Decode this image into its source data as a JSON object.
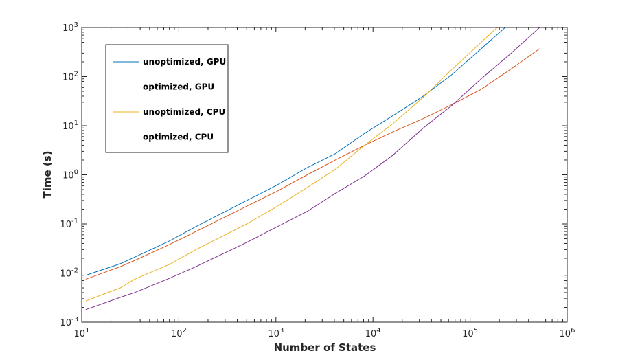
{
  "chart_data": {
    "type": "line",
    "title": "",
    "xlabel": "Number of States",
    "ylabel": "Time (s)",
    "xscale": "log",
    "yscale": "log",
    "xlim": [
      10,
      1000000
    ],
    "ylim": [
      0.001,
      1000
    ],
    "x_ticks": [
      {
        "value": 10,
        "base": "10",
        "exp": "1"
      },
      {
        "value": 100,
        "base": "10",
        "exp": "2"
      },
      {
        "value": 1000,
        "base": "10",
        "exp": "3"
      },
      {
        "value": 10000,
        "base": "10",
        "exp": "4"
      },
      {
        "value": 100000,
        "base": "10",
        "exp": "5"
      },
      {
        "value": 1000000,
        "base": "10",
        "exp": "6"
      }
    ],
    "y_ticks": [
      {
        "value": 0.001,
        "base": "10",
        "exp": "-3"
      },
      {
        "value": 0.01,
        "base": "10",
        "exp": "-2"
      },
      {
        "value": 0.1,
        "base": "10",
        "exp": "-1"
      },
      {
        "value": 1,
        "base": "10",
        "exp": "0"
      },
      {
        "value": 10,
        "base": "10",
        "exp": "1"
      },
      {
        "value": 100,
        "base": "10",
        "exp": "2"
      },
      {
        "value": 1000,
        "base": "10",
        "exp": "3"
      }
    ],
    "grid": false,
    "legend_position": "top-left",
    "series": [
      {
        "name": "unoptimized, GPU",
        "color": "#0072BD",
        "points": [
          [
            11,
            0.009
          ],
          [
            25,
            0.0155
          ],
          [
            35,
            0.021
          ],
          [
            80,
            0.045
          ],
          [
            150,
            0.088
          ],
          [
            500,
            0.3
          ],
          [
            1000,
            0.6
          ],
          [
            2100,
            1.4
          ],
          [
            4100,
            2.7
          ],
          [
            8200,
            7.0
          ],
          [
            16000,
            16
          ],
          [
            33000,
            40
          ],
          [
            65000,
            110
          ],
          [
            130000,
            370
          ],
          [
            230000,
            1000
          ]
        ]
      },
      {
        "name": "optimized, GPU",
        "color": "#D95319",
        "points": [
          [
            11,
            0.0075
          ],
          [
            25,
            0.0135
          ],
          [
            35,
            0.018
          ],
          [
            80,
            0.038
          ],
          [
            150,
            0.07
          ],
          [
            500,
            0.23
          ],
          [
            1000,
            0.45
          ],
          [
            2100,
            1.0
          ],
          [
            4100,
            2.0
          ],
          [
            8200,
            4.0
          ],
          [
            16000,
            7.5
          ],
          [
            33000,
            14
          ],
          [
            65000,
            27
          ],
          [
            130000,
            55
          ],
          [
            260000,
            140
          ],
          [
            520000,
            370
          ]
        ]
      },
      {
        "name": "unoptimized, CPU",
        "color": "#EDB120",
        "points": [
          [
            11,
            0.0027
          ],
          [
            25,
            0.005
          ],
          [
            35,
            0.0075
          ],
          [
            80,
            0.015
          ],
          [
            150,
            0.03
          ],
          [
            500,
            0.1
          ],
          [
            1000,
            0.22
          ],
          [
            2100,
            0.55
          ],
          [
            4100,
            1.3
          ],
          [
            8200,
            4.0
          ],
          [
            16000,
            11
          ],
          [
            33000,
            38
          ],
          [
            65000,
            140
          ],
          [
            130000,
            500
          ],
          [
            190000,
            1000
          ]
        ]
      },
      {
        "name": "optimized, CPU",
        "color": "#7E2F8E",
        "points": [
          [
            11,
            0.0018
          ],
          [
            25,
            0.0032
          ],
          [
            35,
            0.004
          ],
          [
            80,
            0.0078
          ],
          [
            150,
            0.0135
          ],
          [
            500,
            0.042
          ],
          [
            1000,
            0.085
          ],
          [
            2100,
            0.18
          ],
          [
            4100,
            0.42
          ],
          [
            8200,
            0.95
          ],
          [
            16000,
            2.5
          ],
          [
            33000,
            9.0
          ],
          [
            65000,
            26
          ],
          [
            130000,
            90
          ],
          [
            260000,
            290
          ],
          [
            520000,
            1000
          ]
        ]
      }
    ]
  }
}
